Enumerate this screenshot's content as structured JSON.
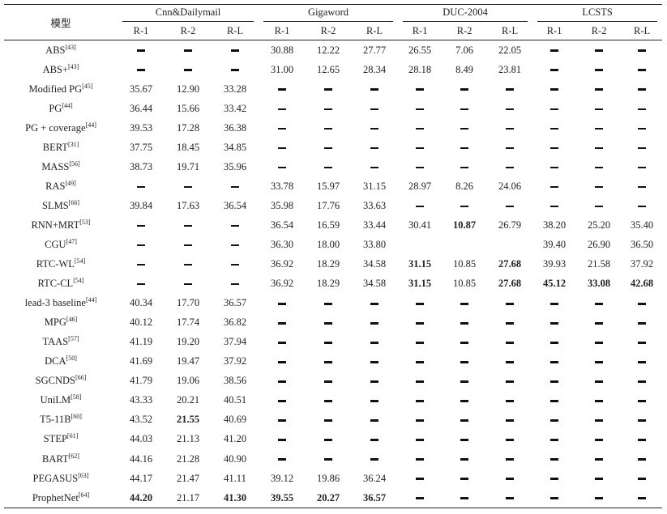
{
  "table": {
    "model_header": "模型",
    "groups": [
      "Cnn&Dailymail",
      "Gigaword",
      "DUC-2004",
      "LCSTS"
    ],
    "metrics": [
      "R-1",
      "R-2",
      "R-L"
    ],
    "rows": [
      {
        "name": "ABS",
        "ref": "[43]",
        "values": [
          "-",
          "-",
          "-",
          "30.88",
          "12.22",
          "27.77",
          "26.55",
          "7.06",
          "22.05",
          "-",
          "-",
          "-"
        ],
        "bold": []
      },
      {
        "name": "ABS+",
        "ref": "[43]",
        "values": [
          "-",
          "-",
          "-",
          "31.00",
          "12.65",
          "28.34",
          "28.18",
          "8.49",
          "23.81",
          "-",
          "-",
          "-"
        ],
        "bold": []
      },
      {
        "name": "Modified PG",
        "ref": "[45]",
        "values": [
          "35.67",
          "12.90",
          "33.28",
          "-",
          "-",
          "-",
          "-",
          "-",
          "-",
          "-",
          "-",
          "-"
        ],
        "bold": []
      },
      {
        "name": "PG",
        "ref": "[44]",
        "values": [
          "36.44",
          "15.66",
          "33.42",
          "-",
          "-",
          "-",
          "-",
          "-",
          "-",
          "-",
          "-",
          "-"
        ],
        "bold": []
      },
      {
        "name": "PG + coverage",
        "ref": "[44]",
        "values": [
          "39.53",
          "17.28",
          "36.38",
          "-",
          "-",
          "-",
          "-",
          "-",
          "-",
          "-",
          "-",
          "-"
        ],
        "bold": []
      },
      {
        "name": "BERT",
        "ref": "[31]",
        "values": [
          "37.75",
          "18.45",
          "34.85",
          "-",
          "-",
          "-",
          "-",
          "-",
          "-",
          "-",
          "-",
          "-"
        ],
        "bold": []
      },
      {
        "name": "MASS",
        "ref": "[56]",
        "values": [
          "38.73",
          "19.71",
          "35.96",
          "-",
          "-",
          "-",
          "-",
          "-",
          "-",
          "-",
          "-",
          "-"
        ],
        "bold": []
      },
      {
        "name": "RAS",
        "ref": "[49]",
        "values": [
          "-",
          "-",
          "-",
          "33.78",
          "15.97",
          "31.15",
          "28.97",
          "8.26",
          "24.06",
          "-",
          "-",
          "-"
        ],
        "bold": []
      },
      {
        "name": "SLMS",
        "ref": "[66]",
        "values": [
          "39.84",
          "17.63",
          "36.54",
          "35.98",
          "17.76",
          "33.63",
          "-",
          "-",
          "-",
          "-",
          "-",
          "-"
        ],
        "bold": []
      },
      {
        "name": "RNN+MRT",
        "ref": "[53]",
        "values": [
          "-",
          "-",
          "-",
          "36.54",
          "16.59",
          "33.44",
          "30.41",
          "10.87",
          "26.79",
          "38.20",
          "25.20",
          "35.40"
        ],
        "bold": [
          7
        ]
      },
      {
        "name": "CGU",
        "ref": "[47]",
        "values": [
          "-",
          "-",
          "-",
          "36.30",
          "18.00",
          "33.80",
          "",
          "",
          "",
          "39.40",
          "26.90",
          "36.50"
        ],
        "bold": []
      },
      {
        "name": "RTC-WL",
        "ref": "[54]",
        "values": [
          "-",
          "-",
          "-",
          "36.92",
          "18.29",
          "34.58",
          "31.15",
          "10.85",
          "27.68",
          "39.93",
          "21.58",
          "37.92"
        ],
        "bold": [
          6,
          8
        ]
      },
      {
        "name": "RTC-CL",
        "ref": "[54]",
        "values": [
          "-",
          "-",
          "-",
          "36.92",
          "18.29",
          "34.58",
          "31.15",
          "10.85",
          "27.68",
          "45.12",
          "33.08",
          "42.68"
        ],
        "bold": [
          6,
          8,
          9,
          10,
          11
        ]
      },
      {
        "name": "lead-3 baseline",
        "ref": "[44]",
        "values": [
          "40.34",
          "17.70",
          "36.57",
          "-",
          "-",
          "-",
          "-",
          "-",
          "-",
          "-",
          "-",
          "-"
        ],
        "bold": []
      },
      {
        "name": "MPG",
        "ref": "[46]",
        "values": [
          "40.12",
          "17.74",
          "36.82",
          "-",
          "-",
          "-",
          "-",
          "-",
          "-",
          "-",
          "-",
          "-"
        ],
        "bold": []
      },
      {
        "name": "TAAS",
        "ref": "[57]",
        "values": [
          "41.19",
          "19.20",
          "37.94",
          "-",
          "-",
          "-",
          "-",
          "-",
          "-",
          "-",
          "-",
          "-"
        ],
        "bold": []
      },
      {
        "name": "DCA",
        "ref": "[50]",
        "values": [
          "41.69",
          "19.47",
          "37.92",
          "-",
          "-",
          "-",
          "-",
          "-",
          "-",
          "-",
          "-",
          "-"
        ],
        "bold": []
      },
      {
        "name": "SGCNDS",
        "ref": "[66]",
        "values": [
          "41.79",
          "19.06",
          "38.56",
          "-",
          "-",
          "-",
          "-",
          "-",
          "-",
          "-",
          "-",
          "-"
        ],
        "bold": []
      },
      {
        "name": "UniLM",
        "ref": "[58]",
        "values": [
          "43.33",
          "20.21",
          "40.51",
          "-",
          "-",
          "-",
          "-",
          "-",
          "-",
          "-",
          "-",
          "-"
        ],
        "bold": []
      },
      {
        "name": "T5-11B",
        "ref": "[60]",
        "values": [
          "43.52",
          "21.55",
          "40.69",
          "-",
          "-",
          "-",
          "-",
          "-",
          "-",
          "-",
          "-",
          "-"
        ],
        "bold": [
          1
        ]
      },
      {
        "name": "STEP",
        "ref": "[61]",
        "values": [
          "44.03",
          "21.13",
          "41.20",
          "-",
          "-",
          "-",
          "-",
          "-",
          "-",
          "-",
          "-",
          "-"
        ],
        "bold": []
      },
      {
        "name": "BART",
        "ref": "[62]",
        "values": [
          "44.16",
          "21.28",
          "40.90",
          "-",
          "-",
          "-",
          "-",
          "-",
          "-",
          "-",
          "-",
          "-"
        ],
        "bold": []
      },
      {
        "name": "PEGASUS",
        "ref": "[63]",
        "values": [
          "44.17",
          "21.47",
          "41.11",
          "39.12",
          "19.86",
          "36.24",
          "-",
          "-",
          "-",
          "-",
          "-",
          "-"
        ],
        "bold": []
      },
      {
        "name": "ProphetNet",
        "ref": "[64]",
        "values": [
          "44.20",
          "21.17",
          "41.30",
          "39.55",
          "20.27",
          "36.57",
          "-",
          "-",
          "-",
          "-",
          "-",
          "-"
        ],
        "bold": [
          0,
          2,
          3,
          4,
          5
        ]
      }
    ]
  }
}
